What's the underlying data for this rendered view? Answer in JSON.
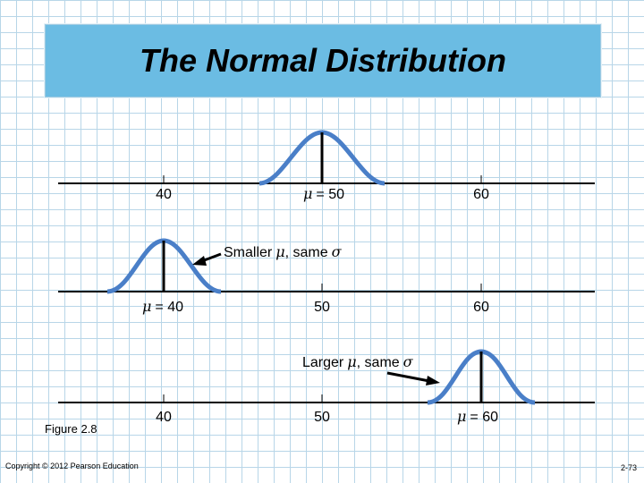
{
  "title": "The Normal Distribution",
  "panel1": {
    "ticks": [
      "40",
      "= 50",
      "60"
    ],
    "mu_symbol": "μ"
  },
  "panel2": {
    "annotation_prefix": "Smaller",
    "annotation_mu": "μ",
    "annotation_mid": ", same",
    "annotation_sigma": "σ",
    "ticks": [
      "= 40",
      "50",
      "60"
    ],
    "mu_symbol": "μ"
  },
  "panel3": {
    "annotation_prefix": "Larger",
    "annotation_mu": "μ",
    "annotation_mid": ", same",
    "annotation_sigma": "σ",
    "ticks": [
      "40",
      "50",
      "= 60"
    ],
    "mu_symbol": "μ"
  },
  "figure_label": "Figure 2.8",
  "copyright": "Copyright © 2012 Pearson Education",
  "page_number": "2-73",
  "colors": {
    "curve": "#4a7fc8",
    "banner": "#6bbce3",
    "grid": "#b8d6e8"
  }
}
